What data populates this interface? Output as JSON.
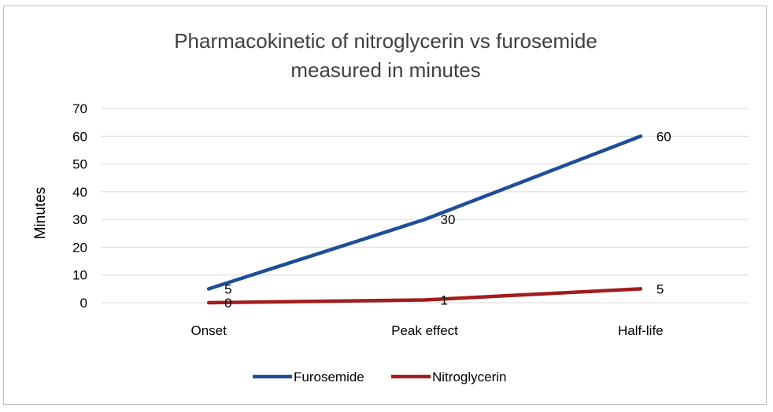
{
  "chart_data": {
    "type": "line",
    "title_lines": [
      "Pharmacokinetic of nitroglycerin vs furosemide",
      "measured in minutes"
    ],
    "xlabel": "",
    "ylabel": "Minutes",
    "categories": [
      "Onset",
      "Peak effect",
      "Half-life"
    ],
    "ylim": [
      0,
      70
    ],
    "yticks": [
      "0",
      "10",
      "20",
      "30",
      "40",
      "50",
      "60",
      "70"
    ],
    "grid": true,
    "legend_position": "bottom",
    "series": [
      {
        "name": "Furosemide",
        "values": [
          5,
          30,
          60
        ],
        "labels": [
          "5",
          "30",
          "60"
        ],
        "color": "#1f4e96"
      },
      {
        "name": "Nitroglycerin",
        "values": [
          0,
          1,
          5
        ],
        "labels": [
          "0",
          "1",
          "5"
        ],
        "color": "#a11d1d"
      }
    ]
  }
}
